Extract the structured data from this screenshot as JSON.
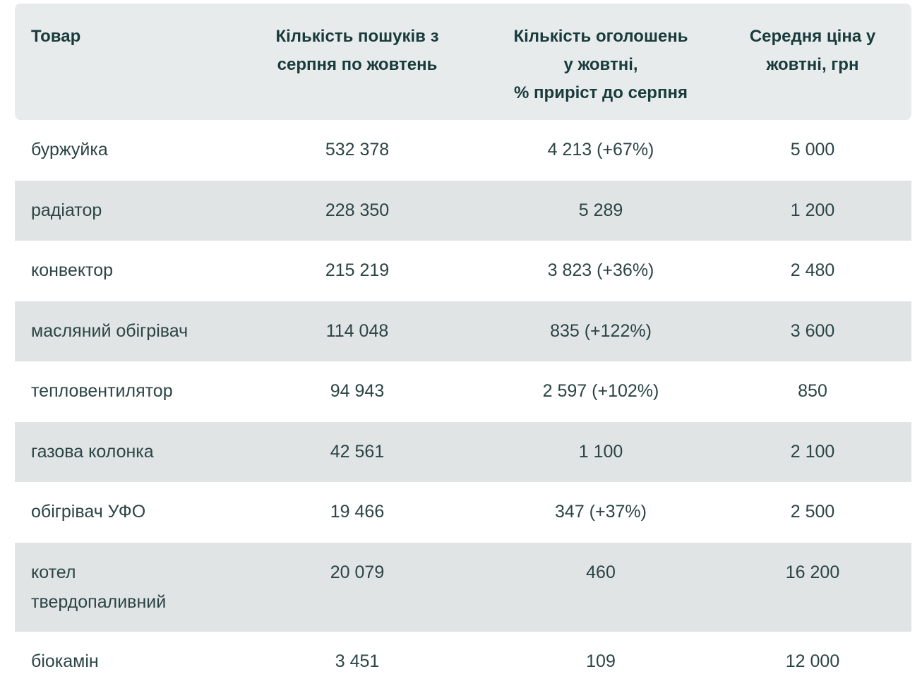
{
  "table": {
    "headers": [
      "Товар",
      "Кількість пошуків з\nсерпня по жовтень",
      "Кількість оголошень\nу жовтні,\n% приріст до серпня",
      "Середня ціна у\nжовтні, грн"
    ],
    "rows": [
      [
        "буржуйка",
        "532 378",
        "4 213 (+67%)",
        "5 000"
      ],
      [
        "радіатор",
        "228 350",
        "5 289",
        "1 200"
      ],
      [
        "конвектор",
        "215 219",
        "3 823 (+36%)",
        "2 480"
      ],
      [
        "масляний обігрівач",
        "114 048",
        "835 (+122%)",
        "3 600"
      ],
      [
        "тепловентилятор",
        "94 943",
        "2 597 (+102%)",
        "850"
      ],
      [
        "газова колонка",
        "42 561",
        "1 100",
        "2 100"
      ],
      [
        "обігрівач УФО",
        "19 466",
        "347 (+37%)",
        "2 500"
      ],
      [
        "котел твердопаливний",
        "20 079",
        "460",
        "16 200"
      ],
      [
        "біокамін",
        "3 451",
        "109",
        "12 000"
      ]
    ]
  }
}
